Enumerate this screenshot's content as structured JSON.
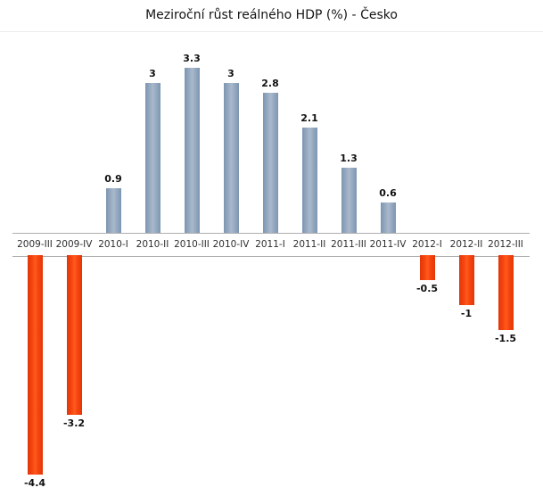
{
  "title": "Meziroční růst reálného HDP (%) - Česko",
  "chart_data": {
    "type": "bar",
    "title": "Meziroční růst reálného HDP (%) - Česko",
    "categories": [
      "2009-III",
      "2009-IV",
      "2010-I",
      "2010-II",
      "2010-III",
      "2010-IV",
      "2011-I",
      "2011-II",
      "2011-III",
      "2011-IV",
      "2012-I",
      "2012-II",
      "2012-III"
    ],
    "values": [
      -4.4,
      -3.2,
      0.9,
      3,
      3.3,
      3,
      2.8,
      2.1,
      1.3,
      0.6,
      -0.5,
      -1,
      -1.5
    ],
    "value_labels": [
      "-4.4",
      "-3.2",
      "0.9",
      "3",
      "3.3",
      "3",
      "2.8",
      "2.1",
      "1.3",
      "0.6",
      "-0.5",
      "-1",
      "-1.5"
    ],
    "xlabel": "",
    "ylabel": "",
    "ylim": [
      -4.4,
      3.3
    ],
    "grid": false,
    "legend": false,
    "data_labels": true,
    "colors": {
      "positive_bar": "#8ea4bd",
      "negative_bar": "#f43e0a",
      "axis_line": "#aeaeae"
    }
  }
}
